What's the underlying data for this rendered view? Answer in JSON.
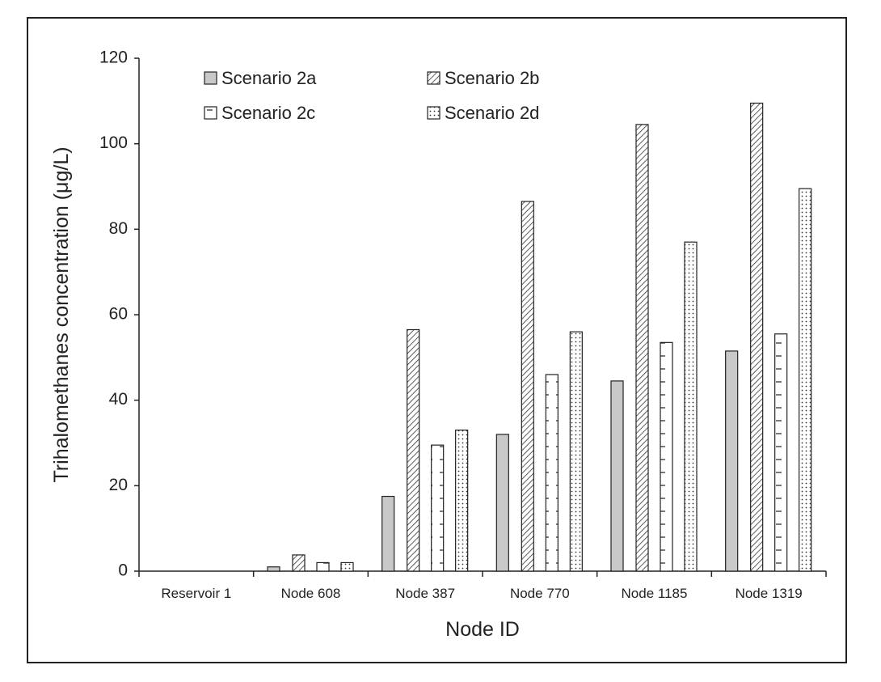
{
  "chart_data": {
    "type": "bar",
    "title": "",
    "xlabel": "Node ID",
    "ylabel": "Trihalomethanes concentration (μg/L)",
    "ylim": [
      0,
      120
    ],
    "yticks": [
      0,
      20,
      40,
      60,
      80,
      100,
      120
    ],
    "grid": false,
    "legend_position": "top",
    "categories": [
      "Reservoir 1",
      "Node 608",
      "Node 387",
      "Node 770",
      "Node 1185",
      "Node 1319"
    ],
    "series": [
      {
        "name": "Scenario 2a",
        "values": [
          0,
          1,
          17.5,
          32,
          44.5,
          51.5
        ],
        "pattern": "solid-gray",
        "color": "#c8c8c8"
      },
      {
        "name": "Scenario 2b",
        "values": [
          0,
          3.8,
          56.5,
          86.5,
          104.5,
          109.5
        ],
        "pattern": "diagonal-hatch",
        "color": "#ffffff"
      },
      {
        "name": "Scenario 2c",
        "values": [
          0,
          2,
          29.5,
          46,
          53.5,
          55.5
        ],
        "pattern": "horizontal-lines",
        "color": "#ffffff"
      },
      {
        "name": "Scenario 2d",
        "values": [
          0,
          2,
          33,
          56,
          77,
          89.5
        ],
        "pattern": "dots",
        "color": "#ffffff"
      }
    ]
  }
}
